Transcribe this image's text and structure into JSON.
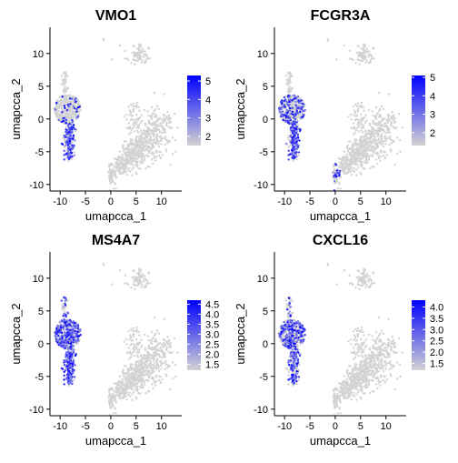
{
  "chart_data": [
    {
      "type": "scatter",
      "title": "VMO1",
      "xlabel": "umapcca_1",
      "ylabel": "umapcca_2",
      "xlim": [
        -12,
        14
      ],
      "ylim": [
        -11,
        14
      ],
      "xticks": [
        -10,
        -5,
        0,
        5,
        10
      ],
      "yticks": [
        -10,
        -5,
        0,
        5,
        10
      ],
      "colorbar": {
        "min": 1.5,
        "max": 5.3,
        "ticks": [
          2,
          3,
          4,
          5
        ],
        "low_color": "#d3d3d3",
        "high_color": "#0000ff"
      },
      "hot_regions": [
        {
          "cluster": "stalk",
          "intensity": 0.75
        },
        {
          "cluster": "upper_blob",
          "intensity": 0.08
        }
      ]
    },
    {
      "type": "scatter",
      "title": "FCGR3A",
      "xlabel": "umapcca_1",
      "ylabel": "umapcca_2",
      "xlim": [
        -12,
        14
      ],
      "ylim": [
        -11,
        14
      ],
      "xticks": [
        -10,
        -5,
        0,
        5,
        10
      ],
      "yticks": [
        -10,
        -5,
        0,
        5,
        10
      ],
      "colorbar": {
        "min": 1.3,
        "max": 5.1,
        "ticks": [
          2,
          3,
          4,
          5
        ],
        "low_color": "#d3d3d3",
        "high_color": "#0000ff"
      },
      "hot_regions": [
        {
          "cluster": "stalk",
          "intensity": 0.7
        },
        {
          "cluster": "upper_blob",
          "intensity": 0.35
        },
        {
          "cluster": "bottom_tail",
          "intensity": 0.3
        }
      ]
    },
    {
      "type": "scatter",
      "title": "MS4A7",
      "xlabel": "umapcca_1",
      "ylabel": "umapcca_2",
      "xlim": [
        -12,
        14
      ],
      "ylim": [
        -11,
        14
      ],
      "xticks": [
        -10,
        -5,
        0,
        5,
        10
      ],
      "yticks": [
        -10,
        -5,
        0,
        5,
        10
      ],
      "colorbar": {
        "min": 1.2,
        "max": 4.7,
        "ticks": [
          1.5,
          2.0,
          2.5,
          3.0,
          3.5,
          4.0,
          4.5
        ],
        "low_color": "#d3d3d3",
        "high_color": "#0000ff"
      },
      "hot_regions": [
        {
          "cluster": "stalk",
          "intensity": 0.85
        },
        {
          "cluster": "upper_blob",
          "intensity": 0.6
        },
        {
          "cluster": "neck",
          "intensity": 0.4
        }
      ]
    },
    {
      "type": "scatter",
      "title": "CXCL16",
      "xlabel": "umapcca_1",
      "ylabel": "umapcca_2",
      "xlim": [
        -12,
        14
      ],
      "ylim": [
        -11,
        14
      ],
      "xticks": [
        -10,
        -5,
        0,
        5,
        10
      ],
      "yticks": [
        -10,
        -5,
        0,
        5,
        10
      ],
      "colorbar": {
        "min": 1.2,
        "max": 4.3,
        "ticks": [
          1.5,
          2.0,
          2.5,
          3.0,
          3.5,
          4.0
        ],
        "low_color": "#d3d3d3",
        "high_color": "#0000ff"
      },
      "hot_regions": [
        {
          "cluster": "stalk",
          "intensity": 0.5
        },
        {
          "cluster": "upper_blob",
          "intensity": 0.45
        },
        {
          "cluster": "neck",
          "intensity": 0.25
        }
      ]
    }
  ]
}
